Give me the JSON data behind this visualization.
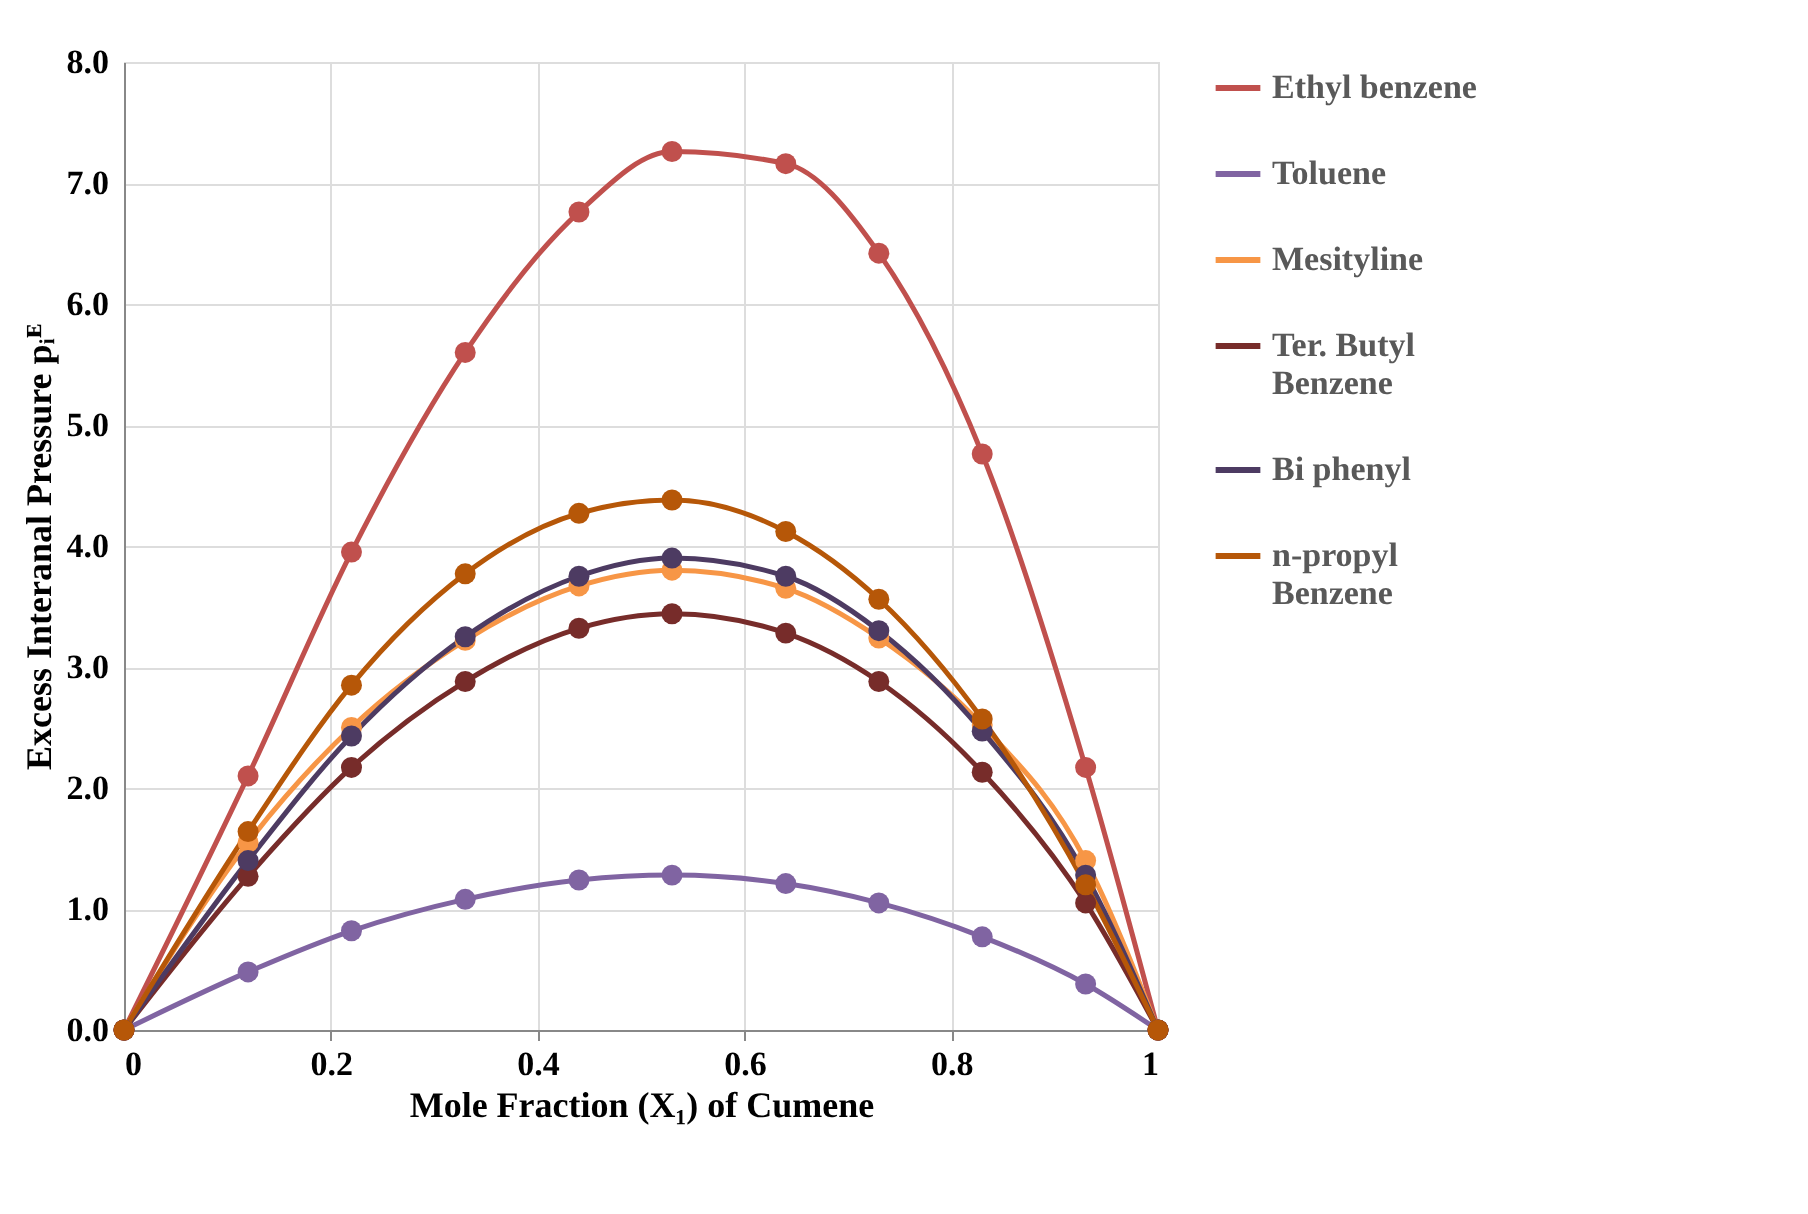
{
  "chart_data": {
    "type": "line",
    "xlabel": "Mole Fraction (X₁) of Cumene",
    "ylabel": "Excess Interanal Pressure pᵢᴱ",
    "x": [
      0,
      0.12,
      0.22,
      0.33,
      0.44,
      0.53,
      0.64,
      0.73,
      0.83,
      0.93,
      1
    ],
    "series": [
      {
        "name": "Ethyl benzene",
        "color": "#c0504d",
        "values": [
          0,
          2.1,
          3.95,
          5.6,
          6.76,
          7.26,
          7.16,
          6.42,
          4.76,
          2.17,
          0
        ]
      },
      {
        "name": "Toluene",
        "color": "#8064a2",
        "values": [
          0,
          0.48,
          0.82,
          1.08,
          1.24,
          1.28,
          1.21,
          1.05,
          0.77,
          0.38,
          0
        ]
      },
      {
        "name": "Mesityline",
        "color": "#f79646",
        "values": [
          0,
          1.55,
          2.5,
          3.22,
          3.67,
          3.8,
          3.65,
          3.24,
          2.52,
          1.4,
          0
        ]
      },
      {
        "name": "Ter. Butyl\nBenzene",
        "color": "#772c2a",
        "values": [
          0,
          1.27,
          2.17,
          2.88,
          3.32,
          3.44,
          3.28,
          2.88,
          2.13,
          1.05,
          0
        ]
      },
      {
        "name": "Bi phenyl",
        "color": "#4d3b62",
        "values": [
          0,
          1.4,
          2.43,
          3.25,
          3.75,
          3.9,
          3.75,
          3.3,
          2.47,
          1.28,
          0
        ]
      },
      {
        "name": "n-propyl\n Benzene",
        "color": "#b65708",
        "values": [
          0,
          1.64,
          2.85,
          3.77,
          4.27,
          4.38,
          4.12,
          3.56,
          2.57,
          1.2,
          0
        ]
      }
    ],
    "xlim": [
      0,
      1
    ],
    "xticks": [
      {
        "value": 0,
        "label": "0"
      },
      0.2,
      0.4,
      0.6,
      0.8,
      {
        "value": 1,
        "label": "1"
      }
    ],
    "ylim": [
      0,
      8
    ],
    "yticks": [
      {
        "value": 0,
        "label": "0.0"
      },
      {
        "value": 1,
        "label": "1.0"
      },
      {
        "value": 2,
        "label": "2.0"
      },
      {
        "value": 3,
        "label": "3.0"
      },
      {
        "value": 4,
        "label": "4.0"
      },
      {
        "value": 5,
        "label": "5.0"
      },
      {
        "value": 6,
        "label": "6.0"
      },
      {
        "value": 7,
        "label": "7.0"
      },
      {
        "value": 8,
        "label": "8.0"
      }
    ],
    "grid": true,
    "legend": "right",
    "marker": "circle",
    "line_style": "solid"
  }
}
